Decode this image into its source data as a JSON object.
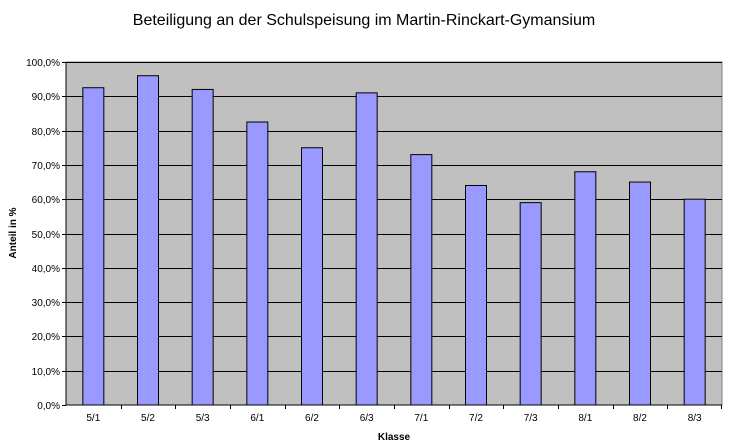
{
  "chart_data": {
    "type": "bar",
    "title": "Beteiligung an der Schulspeisung im Martin-Rinckart-Gymansium",
    "xlabel": "Klasse",
    "ylabel": "Anteil in %",
    "categories": [
      "5/1",
      "5/2",
      "5/3",
      "6/1",
      "6/2",
      "6/3",
      "7/1",
      "7/2",
      "7/3",
      "8/1",
      "8/2",
      "8/3"
    ],
    "values": [
      92.5,
      96.0,
      92.0,
      82.5,
      75.0,
      91.0,
      73.0,
      64.0,
      59.0,
      68.0,
      65.0,
      60.0
    ],
    "ylim": [
      0,
      100
    ],
    "yticks": [
      0,
      10,
      20,
      30,
      40,
      50,
      60,
      70,
      80,
      90,
      100
    ],
    "ytick_labels": [
      "0,0%",
      "10,0%",
      "20,0%",
      "30,0%",
      "40,0%",
      "50,0%",
      "60,0%",
      "70,0%",
      "80,0%",
      "90,0%",
      "100,0%"
    ],
    "grid": true,
    "legend": "none",
    "colors": {
      "bar_fill": "#9999ff",
      "bar_stroke": "#000000",
      "plot_background": "#c0c0c0",
      "gridline": "#000000"
    }
  }
}
